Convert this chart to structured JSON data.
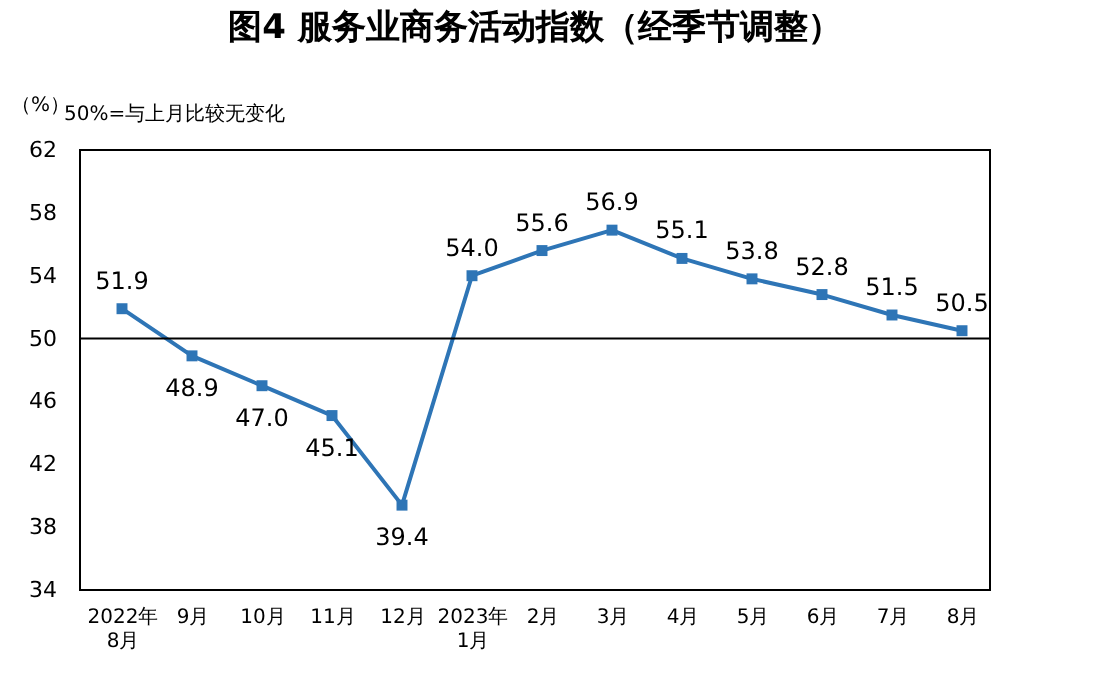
{
  "chart_data": {
    "type": "line",
    "title": "图4  服务业商务活动指数（经季节调整）",
    "ylabel": "（%）",
    "annotations": [
      "50%=与上月比较无变化"
    ],
    "categories": [
      "2022年\n8月",
      "9月",
      "10月",
      "11月",
      "12月",
      "2023年\n1月",
      "2月",
      "3月",
      "4月",
      "5月",
      "6月",
      "7月",
      "8月"
    ],
    "series": [
      {
        "color": "#2e75b6",
        "values": [
          51.9,
          48.9,
          47.0,
          45.1,
          39.4,
          54.0,
          55.6,
          56.9,
          55.1,
          53.8,
          52.8,
          51.5,
          50.5
        ]
      }
    ],
    "value_labels": [
      "51.9",
      "48.9",
      "47.0",
      "45.1",
      "39.4",
      "54.0",
      "55.6",
      "56.9",
      "55.1",
      "53.8",
      "52.8",
      "51.5",
      "50.5"
    ],
    "ylim": [
      34,
      62
    ],
    "yticks": [
      34,
      38,
      42,
      46,
      50,
      54,
      58,
      62
    ],
    "ref_lines": [
      {
        "axis": "y",
        "value": 50,
        "color": "#000000"
      }
    ],
    "marker": "square",
    "line_style": "solid"
  }
}
